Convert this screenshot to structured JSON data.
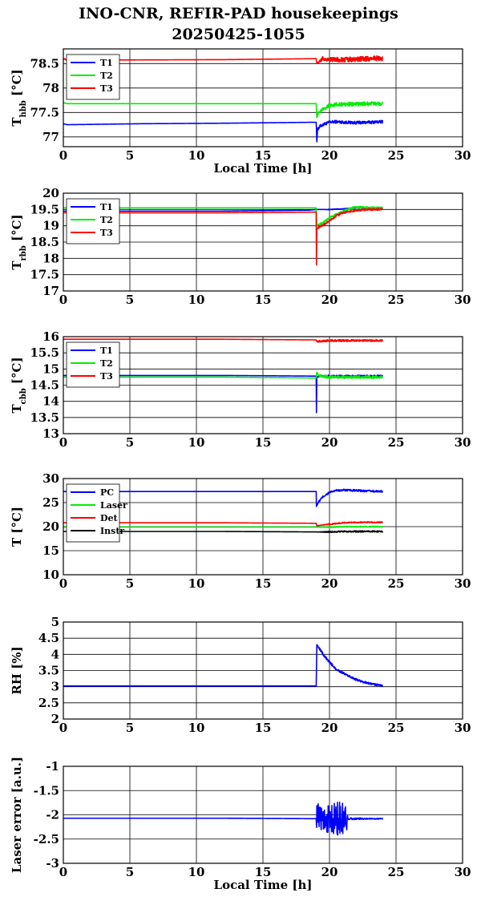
{
  "title_line1": "INO-CNR, REFIR-PAD housekeepings",
  "title_line2": "20250425-1055",
  "chart_data": [
    {
      "type": "line",
      "ylabel": "T_hbb [°C]",
      "ylabel_main": "T",
      "ylabel_sub": "hbb",
      "ylabel_unit": " [°C]",
      "xlabel": "Local Time [h]",
      "xlim": [
        0,
        30
      ],
      "ylim": [
        76.8,
        78.8
      ],
      "xticks": [
        0,
        5,
        10,
        15,
        20,
        25,
        30
      ],
      "yticks": [
        77,
        77.5,
        78,
        78.5
      ],
      "ytick_labels": [
        "77",
        "77.5",
        "78",
        "78.5"
      ],
      "grid": true,
      "legend": "top-left",
      "series": [
        {
          "name": "T1",
          "color": "#0000ff",
          "x": [
            0,
            0.3,
            6,
            12,
            19,
            19.05,
            19.1,
            19.3,
            19.6,
            20,
            20.5,
            21,
            22,
            23,
            24
          ],
          "y": [
            77.27,
            77.25,
            77.27,
            77.28,
            77.3,
            76.9,
            77.15,
            77.22,
            77.26,
            77.3,
            77.31,
            77.3,
            77.29,
            77.3,
            77.31
          ],
          "noise": [
            0,
            0,
            0,
            0,
            0,
            0,
            0.03,
            0.03,
            0.03,
            0.03,
            0.03,
            0.03,
            0.03,
            0.03,
            0.03
          ]
        },
        {
          "name": "T2",
          "color": "#00ee00",
          "x": [
            0,
            0.3,
            12,
            19,
            19.05,
            19.2,
            19.5,
            20,
            20.5,
            21,
            22,
            23,
            24
          ],
          "y": [
            77.7,
            77.68,
            77.68,
            77.68,
            77.4,
            77.5,
            77.58,
            77.64,
            77.66,
            77.67,
            77.67,
            77.68,
            77.68
          ],
          "noise": [
            0,
            0,
            0,
            0,
            0,
            0.03,
            0.03,
            0.04,
            0.04,
            0.04,
            0.04,
            0.04,
            0.04
          ]
        },
        {
          "name": "T3",
          "color": "#ff0000",
          "x": [
            0,
            0.3,
            12,
            19,
            19.05,
            19.5,
            20,
            21,
            22,
            23,
            24
          ],
          "y": [
            78.6,
            78.57,
            78.58,
            78.6,
            78.5,
            78.6,
            78.58,
            78.58,
            78.59,
            78.6,
            78.61
          ],
          "noise": [
            0.02,
            0,
            0,
            0,
            0,
            0.05,
            0.05,
            0.05,
            0.05,
            0.05,
            0.05
          ]
        }
      ]
    },
    {
      "type": "line",
      "ylabel": "T_rbb [°C]",
      "ylabel_main": "T",
      "ylabel_sub": "rbb",
      "ylabel_unit": " [°C]",
      "xlabel": "",
      "xlim": [
        0,
        30
      ],
      "ylim": [
        17,
        20
      ],
      "xticks": [
        0,
        5,
        10,
        15,
        20,
        25,
        30
      ],
      "yticks": [
        17,
        17.5,
        18,
        18.5,
        19,
        19.5,
        20
      ],
      "ytick_labels": [
        "17",
        "17.5",
        "18",
        "18.5",
        "19",
        "19.5",
        "20"
      ],
      "grid": true,
      "legend": "top-left",
      "series": [
        {
          "name": "T1",
          "color": "#0000ff",
          "x": [
            0,
            12,
            18.5,
            19,
            19.05,
            19.5,
            20,
            21,
            22,
            23,
            24
          ],
          "y": [
            19.45,
            19.45,
            19.48,
            19.5,
            19.5,
            19.5,
            19.5,
            19.52,
            19.55,
            19.55,
            19.55
          ],
          "noise": [
            0,
            0,
            0,
            0,
            0,
            0,
            0.01,
            0.01,
            0.01,
            0.01,
            0.01
          ]
        },
        {
          "name": "T2",
          "color": "#00ee00",
          "x": [
            0,
            12,
            19,
            19.05,
            19.2,
            19.5,
            20,
            21,
            21.5,
            22,
            23,
            24
          ],
          "y": [
            19.55,
            19.55,
            19.55,
            19.0,
            19.05,
            19.1,
            19.25,
            19.45,
            19.52,
            19.58,
            19.55,
            19.55
          ],
          "noise": [
            0,
            0,
            0,
            0,
            0.02,
            0.03,
            0.03,
            0.03,
            0.03,
            0.03,
            0.03,
            0.03
          ]
        },
        {
          "name": "T3",
          "color": "#ff0000",
          "x": [
            0,
            12,
            19,
            19.02,
            19.05,
            19.15,
            19.5,
            20,
            20.5,
            21,
            22,
            23,
            24
          ],
          "y": [
            19.4,
            19.4,
            19.42,
            17.8,
            18.9,
            18.95,
            19.02,
            19.15,
            19.3,
            19.4,
            19.47,
            19.5,
            19.5
          ],
          "noise": [
            0,
            0,
            0,
            0,
            0,
            0.03,
            0.03,
            0.03,
            0.03,
            0.03,
            0.03,
            0.03,
            0.03
          ]
        }
      ]
    },
    {
      "type": "line",
      "ylabel": "T_cbb [°C]",
      "ylabel_main": "T",
      "ylabel_sub": "cbb",
      "ylabel_unit": " [°C]",
      "xlabel": "",
      "xlim": [
        0,
        30
      ],
      "ylim": [
        13,
        16
      ],
      "xticks": [
        0,
        5,
        10,
        15,
        20,
        25,
        30
      ],
      "yticks": [
        13,
        13.5,
        14,
        14.5,
        15,
        15.5,
        16
      ],
      "ytick_labels": [
        "13",
        "13.5",
        "14",
        "14.5",
        "15",
        "15.5",
        "16"
      ],
      "grid": true,
      "legend": "top-left",
      "series": [
        {
          "name": "T1",
          "color": "#0000ff",
          "x": [
            0,
            12,
            19,
            19.02,
            19.05,
            19.3,
            20,
            21,
            22,
            23,
            24
          ],
          "y": [
            14.8,
            14.8,
            14.78,
            13.65,
            14.75,
            14.78,
            14.78,
            14.78,
            14.78,
            14.78,
            14.78
          ],
          "noise": [
            0,
            0,
            0,
            0,
            0,
            0.03,
            0.03,
            0.03,
            0.03,
            0.03,
            0.03
          ]
        },
        {
          "name": "T2",
          "color": "#00ee00",
          "x": [
            0,
            12,
            19,
            19.05,
            19.2,
            19.5,
            20,
            21,
            22,
            23,
            24
          ],
          "y": [
            14.75,
            14.75,
            14.72,
            14.9,
            14.8,
            14.78,
            14.75,
            14.75,
            14.75,
            14.75,
            14.75
          ],
          "noise": [
            0,
            0,
            0,
            0,
            0.04,
            0.04,
            0.04,
            0.04,
            0.04,
            0.04,
            0.04
          ]
        },
        {
          "name": "T3",
          "color": "#ff0000",
          "x": [
            0,
            12,
            19,
            19.05,
            19.5,
            20,
            21,
            22,
            23,
            24
          ],
          "y": [
            15.92,
            15.92,
            15.9,
            15.85,
            15.87,
            15.88,
            15.88,
            15.88,
            15.88,
            15.88
          ],
          "noise": [
            0,
            0,
            0,
            0.03,
            0.03,
            0.03,
            0.03,
            0.03,
            0.03,
            0.03
          ]
        }
      ]
    },
    {
      "type": "line",
      "ylabel": "T [°C]",
      "ylabel_main": "T [°C]",
      "ylabel_sub": "",
      "ylabel_unit": "",
      "xlabel": "",
      "xlim": [
        0,
        30
      ],
      "ylim": [
        10,
        30
      ],
      "xticks": [
        0,
        5,
        10,
        15,
        20,
        25,
        30
      ],
      "yticks": [
        10,
        15,
        20,
        25,
        30
      ],
      "ytick_labels": [
        "10",
        "15",
        "20",
        "25",
        "30"
      ],
      "grid": true,
      "legend": "top-left",
      "series": [
        {
          "name": "PC",
          "color": "#0000ff",
          "x": [
            0,
            12,
            19,
            19.02,
            19.2,
            19.5,
            20,
            20.5,
            21,
            22,
            23,
            24
          ],
          "y": [
            27.3,
            27.3,
            27.3,
            24.2,
            25.2,
            26.2,
            27.1,
            27.5,
            27.6,
            27.5,
            27.4,
            27.3
          ],
          "noise": [
            0,
            0,
            0,
            0,
            0.2,
            0.2,
            0.2,
            0.2,
            0.2,
            0.2,
            0.2,
            0.2
          ]
        },
        {
          "name": "Laser",
          "color": "#00ee00",
          "x": [
            0,
            12,
            19,
            20,
            21,
            22,
            23,
            24
          ],
          "y": [
            19.9,
            19.9,
            19.9,
            19.9,
            20.0,
            20.0,
            20.0,
            20.0
          ],
          "noise": [
            0,
            0,
            0,
            0.1,
            0.1,
            0.1,
            0.1,
            0.1
          ]
        },
        {
          "name": "Det",
          "color": "#ff0000",
          "x": [
            0,
            12,
            19,
            19.05,
            20,
            21,
            22,
            23,
            24
          ],
          "y": [
            20.8,
            20.8,
            20.7,
            20.2,
            20.5,
            20.8,
            20.9,
            20.9,
            20.9
          ],
          "noise": [
            0,
            0,
            0,
            0,
            0.12,
            0.12,
            0.12,
            0.12,
            0.12
          ]
        },
        {
          "name": "Instr",
          "color": "#000000",
          "x": [
            0,
            12,
            19,
            20,
            21,
            22,
            23,
            24
          ],
          "y": [
            19.0,
            19.0,
            18.9,
            18.9,
            19.0,
            19.0,
            19.0,
            19.0
          ],
          "noise": [
            0,
            0,
            0,
            0.15,
            0.15,
            0.15,
            0.15,
            0.15
          ]
        }
      ]
    },
    {
      "type": "line",
      "ylabel": "RH [%]",
      "ylabel_main": "RH [%]",
      "ylabel_sub": "",
      "ylabel_unit": "",
      "xlabel": "",
      "xlim": [
        0,
        30
      ],
      "ylim": [
        2,
        5
      ],
      "xticks": [
        0,
        5,
        10,
        15,
        20,
        25,
        30
      ],
      "yticks": [
        2,
        2.5,
        3,
        3.5,
        4,
        4.5,
        5
      ],
      "ytick_labels": [
        "2",
        "2.5",
        "3",
        "3.5",
        "4",
        "4.5",
        "5"
      ],
      "grid": true,
      "legend": "none",
      "series": [
        {
          "name": "",
          "color": "#0000ff",
          "x": [
            0,
            12,
            19,
            19.05,
            19.3,
            19.6,
            20,
            20.5,
            21,
            21.5,
            22,
            22.5,
            23,
            23.5,
            24
          ],
          "y": [
            3.02,
            3.02,
            3.02,
            4.3,
            4.15,
            3.95,
            3.75,
            3.55,
            3.42,
            3.32,
            3.22,
            3.15,
            3.1,
            3.06,
            3.04
          ],
          "noise": [
            0,
            0,
            0,
            0,
            0.04,
            0.04,
            0.04,
            0.04,
            0.04,
            0.03,
            0.03,
            0.03,
            0.03,
            0.03,
            0.03
          ]
        }
      ]
    },
    {
      "type": "line",
      "ylabel": "Laser error [a.u.]",
      "ylabel_main": "Laser error [a.u.]",
      "ylabel_sub": "",
      "ylabel_unit": "",
      "xlabel": "Local Time [h]",
      "xlim": [
        0,
        30
      ],
      "ylim": [
        -3,
        -1
      ],
      "xticks": [
        0,
        5,
        10,
        15,
        20,
        25,
        30
      ],
      "yticks": [
        -3,
        -2.5,
        -2,
        -1.5,
        -1
      ],
      "ytick_labels": [
        "-3",
        "-2.5",
        "-2",
        "-1.5",
        "-1"
      ],
      "grid": true,
      "legend": "none",
      "series": [
        {
          "name": "",
          "color": "#0000ff",
          "x": [
            0,
            12,
            19,
            19.05,
            19.5,
            20,
            20.5,
            21,
            21.3,
            21.4,
            22,
            23,
            24
          ],
          "y": [
            -2.07,
            -2.07,
            -2.08,
            -2.08,
            -2.08,
            -2.08,
            -2.08,
            -2.08,
            -2.08,
            -2.08,
            -2.08,
            -2.08,
            -2.08
          ],
          "noise": [
            0,
            0,
            0,
            0.35,
            0.25,
            0.3,
            0.35,
            0.35,
            0.3,
            0.02,
            0.02,
            0.01,
            0.01
          ]
        }
      ]
    }
  ]
}
